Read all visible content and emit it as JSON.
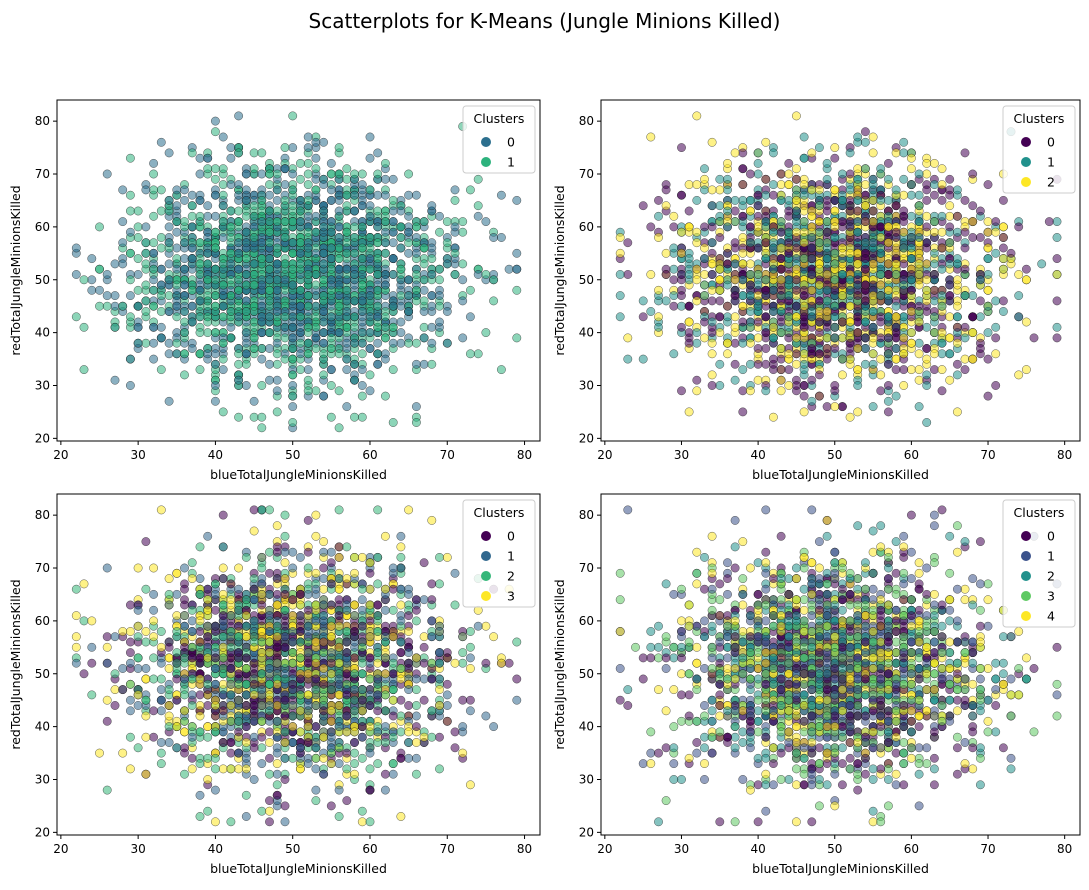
{
  "figure": {
    "title": "Scatterplots for K-Means (Jungle Minions Killed)"
  },
  "palette": {
    "k2": [
      "#2c6f8e",
      "#2db27d"
    ],
    "k3": [
      "#440154",
      "#21918c",
      "#fde725"
    ],
    "k4": [
      "#440154",
      "#31688e",
      "#35b779",
      "#fde725"
    ],
    "k5": [
      "#440154",
      "#3b528b",
      "#21918c",
      "#5ec962",
      "#fde725"
    ]
  },
  "chart_data": [
    {
      "type": "scatter",
      "xlabel": "blueTotalJungleMinionsKilled",
      "ylabel": "redTotalJungleMinionsKilled",
      "xlim": [
        19.5,
        82
      ],
      "ylim": [
        19.5,
        84
      ],
      "xticks": [
        20,
        30,
        40,
        50,
        60,
        70,
        80
      ],
      "yticks": [
        20,
        30,
        40,
        50,
        60,
        70,
        80
      ],
      "x_center": 50,
      "x_spread": 10,
      "y_center": 51,
      "y_spread": 10,
      "x_range": [
        22,
        79
      ],
      "y_range": [
        22,
        81
      ],
      "points_per_series": 1200,
      "legend": {
        "title": "Clusters",
        "position": "upper-right",
        "entries": [
          "0",
          "1"
        ]
      },
      "series": [
        {
          "name": "0",
          "color": "#2c6f8e"
        },
        {
          "name": "1",
          "color": "#2db27d"
        }
      ]
    },
    {
      "type": "scatter",
      "xlabel": "blueTotalJungleMinionsKilled",
      "ylabel": "redTotalJungleMinionsKilled",
      "xlim": [
        19.5,
        82
      ],
      "ylim": [
        19.5,
        84
      ],
      "xticks": [
        20,
        30,
        40,
        50,
        60,
        70,
        80
      ],
      "yticks": [
        20,
        30,
        40,
        50,
        60,
        70,
        80
      ],
      "x_center": 50,
      "x_spread": 10,
      "y_center": 51,
      "y_spread": 10,
      "x_range": [
        22,
        79
      ],
      "y_range": [
        22,
        81
      ],
      "points_per_series": 800,
      "legend": {
        "title": "Clusters",
        "position": "upper-right",
        "entries": [
          "0",
          "1",
          "2"
        ]
      },
      "series": [
        {
          "name": "0",
          "color": "#440154"
        },
        {
          "name": "1",
          "color": "#21918c"
        },
        {
          "name": "2",
          "color": "#fde725"
        }
      ]
    },
    {
      "type": "scatter",
      "xlabel": "blueTotalJungleMinionsKilled",
      "ylabel": "redTotalJungleMinionsKilled",
      "xlim": [
        19.5,
        82
      ],
      "ylim": [
        19.5,
        84
      ],
      "xticks": [
        20,
        30,
        40,
        50,
        60,
        70,
        80
      ],
      "yticks": [
        20,
        30,
        40,
        50,
        60,
        70,
        80
      ],
      "x_center": 50,
      "x_spread": 10,
      "y_center": 51,
      "y_spread": 10,
      "x_range": [
        22,
        79
      ],
      "y_range": [
        22,
        81
      ],
      "points_per_series": 600,
      "legend": {
        "title": "Clusters",
        "position": "upper-right",
        "entries": [
          "0",
          "1",
          "2",
          "3"
        ]
      },
      "series": [
        {
          "name": "0",
          "color": "#440154"
        },
        {
          "name": "1",
          "color": "#31688e"
        },
        {
          "name": "2",
          "color": "#35b779"
        },
        {
          "name": "3",
          "color": "#fde725"
        }
      ]
    },
    {
      "type": "scatter",
      "xlabel": "blueTotalJungleMinionsKilled",
      "ylabel": "redTotalJungleMinionsKilled",
      "xlim": [
        19.5,
        82
      ],
      "ylim": [
        19.5,
        84
      ],
      "xticks": [
        20,
        30,
        40,
        50,
        60,
        70,
        80
      ],
      "yticks": [
        20,
        30,
        40,
        50,
        60,
        70,
        80
      ],
      "x_center": 50,
      "x_spread": 10,
      "y_center": 51,
      "y_spread": 10,
      "x_range": [
        22,
        79
      ],
      "y_range": [
        22,
        81
      ],
      "points_per_series": 480,
      "legend": {
        "title": "Clusters",
        "position": "upper-right",
        "entries": [
          "0",
          "1",
          "2",
          "3",
          "4"
        ]
      },
      "series": [
        {
          "name": "0",
          "color": "#440154"
        },
        {
          "name": "1",
          "color": "#3b528b"
        },
        {
          "name": "2",
          "color": "#21918c"
        },
        {
          "name": "3",
          "color": "#5ec962"
        },
        {
          "name": "4",
          "color": "#fde725"
        }
      ]
    }
  ]
}
